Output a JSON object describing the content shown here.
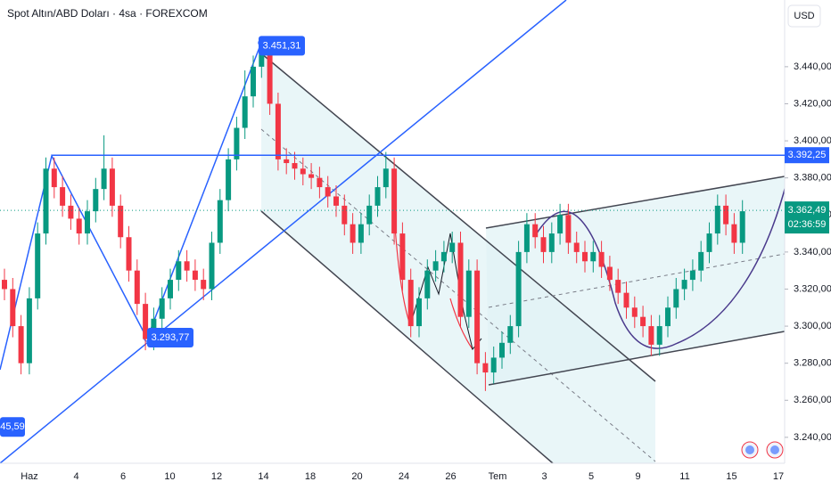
{
  "chart_data": {
    "type": "candlestick",
    "title": "Spot Altın/ABD Doları · 4sa · FOREXCOM",
    "currency": "USD",
    "up_color": "#089981",
    "down_color": "#f23645",
    "ylim": [
      3226,
      3476
    ],
    "yticks": [
      {
        "value": 3440,
        "label": "3.440,00"
      },
      {
        "value": 3420,
        "label": "3.420,00"
      },
      {
        "value": 3400,
        "label": "3.400,00"
      },
      {
        "value": 3380,
        "label": "3.380,00"
      },
      {
        "value": 3360,
        "label": "3.360,00"
      },
      {
        "value": 3340,
        "label": "3.340,00"
      },
      {
        "value": 3320,
        "label": "3.320,00"
      },
      {
        "value": 3300,
        "label": "3.300,00"
      },
      {
        "value": 3280,
        "label": "3.280,00"
      },
      {
        "value": 3260,
        "label": "3.260,00"
      },
      {
        "value": 3240,
        "label": "3.240,00"
      }
    ],
    "grid": false,
    "categories": [
      "Haz",
      "4",
      "6",
      "10",
      "12",
      "14",
      "18",
      "20",
      "24",
      "26",
      "Tem",
      "3",
      "5",
      "9",
      "11",
      "15",
      "17"
    ],
    "candles": [
      [
        3325,
        3331,
        3314,
        3320
      ],
      [
        3320,
        3326,
        3294,
        3300
      ],
      [
        3300,
        3306,
        3274,
        3280
      ],
      [
        3280,
        3321,
        3274,
        3315
      ],
      [
        3315,
        3356,
        3309,
        3350
      ],
      [
        3350,
        3391,
        3344,
        3385
      ],
      [
        3385,
        3391,
        3369,
        3375
      ],
      [
        3375,
        3381,
        3359,
        3365
      ],
      [
        3365,
        3371,
        3352,
        3358
      ],
      [
        3358,
        3364,
        3344,
        3350
      ],
      [
        3350,
        3368,
        3344,
        3362
      ],
      [
        3362,
        3380,
        3356,
        3374
      ],
      [
        3374,
        3403,
        3368,
        3385
      ],
      [
        3385,
        3391,
        3359,
        3365
      ],
      [
        3365,
        3371,
        3342,
        3348
      ],
      [
        3348,
        3354,
        3324,
        3330
      ],
      [
        3330,
        3336,
        3306,
        3312
      ],
      [
        3312,
        3318,
        3287,
        3293
      ],
      [
        3293,
        3310,
        3287,
        3304
      ],
      [
        3304,
        3321,
        3298,
        3315
      ],
      [
        3315,
        3331,
        3309,
        3325
      ],
      [
        3325,
        3341,
        3319,
        3335
      ],
      [
        3335,
        3341,
        3324,
        3330
      ],
      [
        3330,
        3336,
        3319,
        3325
      ],
      [
        3325,
        3331,
        3314,
        3320
      ],
      [
        3320,
        3351,
        3314,
        3345
      ],
      [
        3345,
        3374,
        3339,
        3368
      ],
      [
        3368,
        3396,
        3362,
        3390
      ],
      [
        3390,
        3413,
        3384,
        3407
      ],
      [
        3407,
        3438,
        3401,
        3424
      ],
      [
        3424,
        3446,
        3418,
        3440
      ],
      [
        3440,
        3451,
        3434,
        3448
      ],
      [
        3448,
        3454,
        3414,
        3420
      ],
      [
        3420,
        3426,
        3384,
        3390
      ],
      [
        3390,
        3396,
        3382,
        3388
      ],
      [
        3388,
        3394,
        3379,
        3385
      ],
      [
        3385,
        3391,
        3376,
        3382
      ],
      [
        3382,
        3388,
        3374,
        3380
      ],
      [
        3380,
        3386,
        3369,
        3375
      ],
      [
        3375,
        3381,
        3364,
        3370
      ],
      [
        3370,
        3376,
        3359,
        3365
      ],
      [
        3365,
        3371,
        3349,
        3355
      ],
      [
        3355,
        3361,
        3339,
        3345
      ],
      [
        3345,
        3361,
        3339,
        3355
      ],
      [
        3355,
        3371,
        3349,
        3365
      ],
      [
        3365,
        3381,
        3359,
        3375
      ],
      [
        3375,
        3394,
        3369,
        3385
      ],
      [
        3385,
        3391,
        3344,
        3350
      ],
      [
        3350,
        3356,
        3319,
        3325
      ],
      [
        3325,
        3331,
        3294,
        3300
      ],
      [
        3300,
        3321,
        3294,
        3315
      ],
      [
        3315,
        3336,
        3309,
        3330
      ],
      [
        3330,
        3341,
        3324,
        3335
      ],
      [
        3335,
        3346,
        3329,
        3340
      ],
      [
        3340,
        3351,
        3334,
        3345
      ],
      [
        3345,
        3351,
        3299,
        3305
      ],
      [
        3305,
        3336,
        3299,
        3330
      ],
      [
        3330,
        3336,
        3274,
        3280
      ],
      [
        3280,
        3286,
        3265,
        3275
      ],
      [
        3275,
        3289,
        3269,
        3283
      ],
      [
        3283,
        3297,
        3277,
        3291
      ],
      [
        3291,
        3306,
        3285,
        3300
      ],
      [
        3300,
        3346,
        3294,
        3340
      ],
      [
        3340,
        3361,
        3334,
        3355
      ],
      [
        3355,
        3361,
        3342,
        3348
      ],
      [
        3348,
        3354,
        3334,
        3340
      ],
      [
        3340,
        3356,
        3334,
        3350
      ],
      [
        3350,
        3366,
        3344,
        3360
      ],
      [
        3360,
        3366,
        3339,
        3345
      ],
      [
        3345,
        3351,
        3334,
        3340
      ],
      [
        3340,
        3346,
        3329,
        3335
      ],
      [
        3335,
        3346,
        3329,
        3340
      ],
      [
        3340,
        3346,
        3326,
        3332
      ],
      [
        3332,
        3338,
        3319,
        3325
      ],
      [
        3325,
        3331,
        3312,
        3318
      ],
      [
        3318,
        3324,
        3304,
        3310
      ],
      [
        3310,
        3316,
        3299,
        3305
      ],
      [
        3305,
        3311,
        3294,
        3300
      ],
      [
        3300,
        3306,
        3284,
        3290
      ],
      [
        3290,
        3306,
        3284,
        3300
      ],
      [
        3300,
        3316,
        3294,
        3310
      ],
      [
        3310,
        3326,
        3304,
        3320
      ],
      [
        3320,
        3331,
        3314,
        3325
      ],
      [
        3325,
        3336,
        3319,
        3330
      ],
      [
        3330,
        3346,
        3324,
        3340
      ],
      [
        3340,
        3356,
        3334,
        3350
      ],
      [
        3350,
        3371,
        3344,
        3365
      ],
      [
        3365,
        3371,
        3349,
        3355
      ],
      [
        3355,
        3361,
        3339,
        3345
      ],
      [
        3345,
        3368,
        3339,
        3362
      ]
    ],
    "annotations": [
      {
        "value": 3451.31,
        "label": "3.451,31"
      },
      {
        "value": 3293.77,
        "label": "3.293,77"
      },
      {
        "value": 3245.59,
        "label": "45,59"
      }
    ],
    "hline": {
      "value": 3392.25,
      "label": "3.392,25",
      "color": "#2962ff"
    },
    "last_price": {
      "value": 3362.49,
      "label": "3.362,49",
      "countdown": "02:36:59",
      "color": "#089981"
    }
  }
}
